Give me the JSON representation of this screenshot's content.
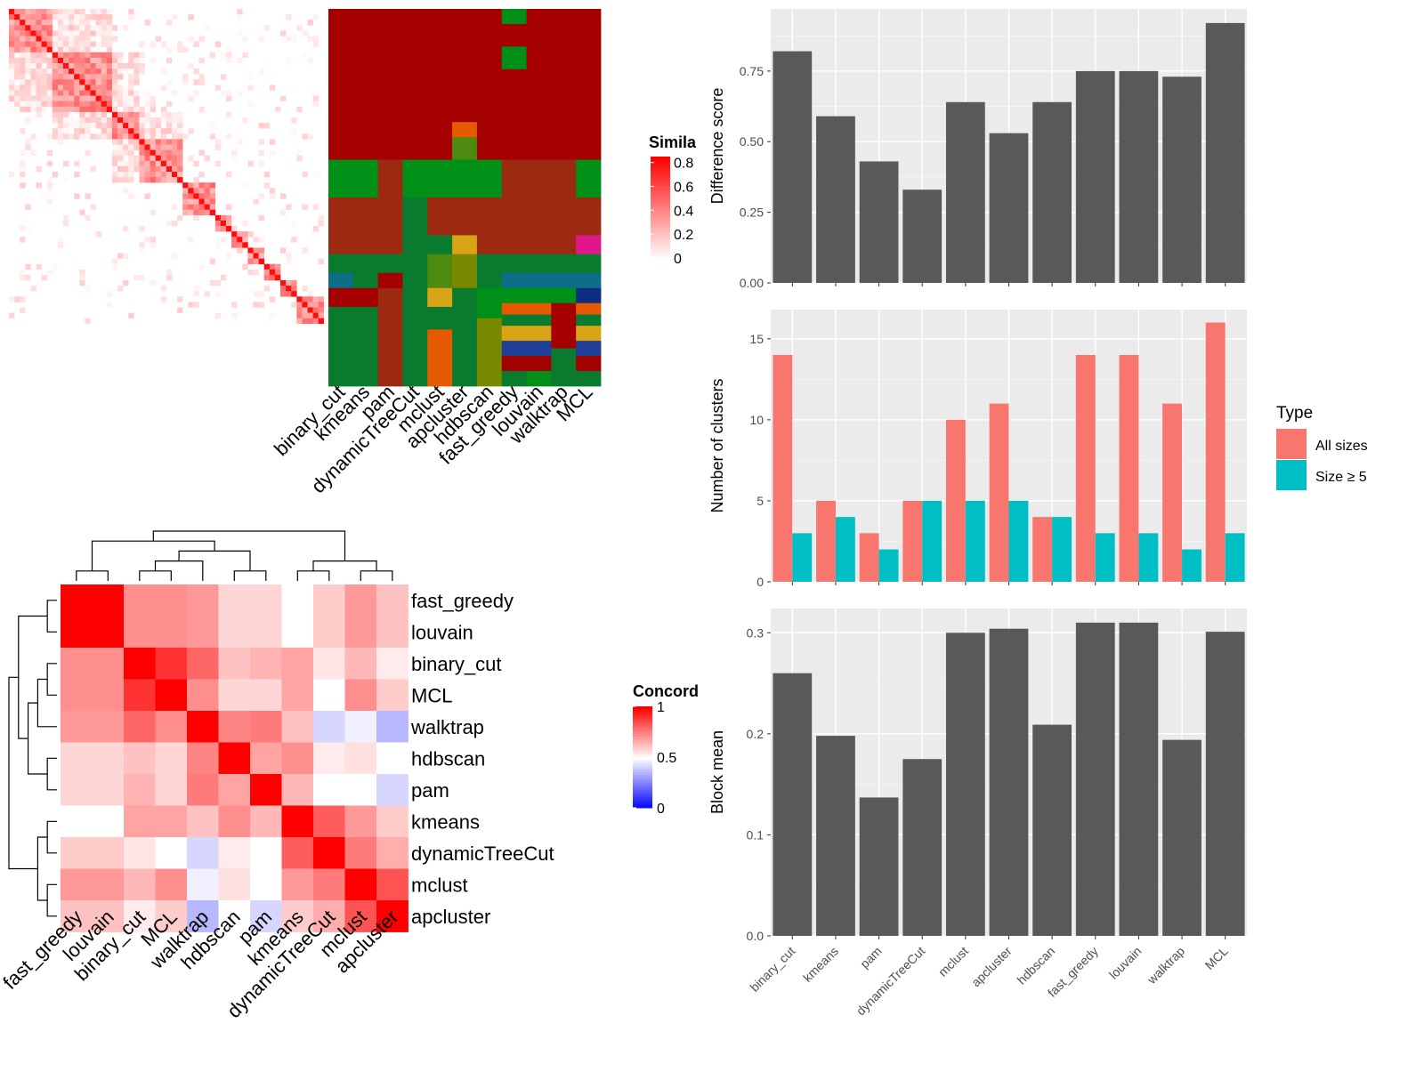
{
  "chart_data": [
    {
      "type": "heatmap",
      "name": "item-similarity-heatmap",
      "colorbar": {
        "title": "Simila",
        "ticks": [
          "0.8",
          "0.6",
          "0.4",
          "0.2",
          "0"
        ],
        "range": [
          0,
          0.85
        ]
      }
    },
    {
      "type": "heatmap",
      "name": "cluster-assignment-heatmap",
      "columns": [
        "binary_cut",
        "kmeans",
        "pam",
        "dynamicTreeCut",
        "mclust",
        "apcluster",
        "hdbscan",
        "fast_greedy",
        "louvain",
        "walktrap",
        "MCL"
      ]
    },
    {
      "type": "heatmap",
      "name": "concordance-heatmap",
      "rows": [
        "fast_greedy",
        "louvain",
        "binary_cut",
        "MCL",
        "walktrap",
        "hdbscan",
        "pam",
        "kmeans",
        "dynamicTreeCut",
        "mclust",
        "apcluster"
      ],
      "columns": [
        "fast_greedy",
        "louvain",
        "binary_cut",
        "MCL",
        "walktrap",
        "hdbscan",
        "pam",
        "kmeans",
        "dynamicTreeCut",
        "mclust",
        "apcluster"
      ],
      "values": [
        [
          1,
          1,
          0.72,
          0.72,
          0.7,
          0.58,
          0.58,
          0.5,
          0.6,
          0.7,
          0.62
        ],
        [
          1,
          1,
          0.72,
          0.72,
          0.7,
          0.58,
          0.58,
          0.5,
          0.6,
          0.7,
          0.62
        ],
        [
          0.72,
          0.72,
          1,
          0.9,
          0.8,
          0.62,
          0.65,
          0.68,
          0.55,
          0.64,
          0.54
        ],
        [
          0.72,
          0.72,
          0.9,
          1,
          0.72,
          0.58,
          0.58,
          0.68,
          0.5,
          0.72,
          0.6
        ],
        [
          0.7,
          0.7,
          0.8,
          0.72,
          1,
          0.74,
          0.76,
          0.62,
          0.42,
          0.47,
          0.36
        ],
        [
          0.58,
          0.58,
          0.62,
          0.58,
          0.74,
          1,
          0.68,
          0.72,
          0.54,
          0.56,
          0.5
        ],
        [
          0.58,
          0.58,
          0.65,
          0.58,
          0.76,
          0.68,
          1,
          0.64,
          0.5,
          0.5,
          0.42
        ],
        [
          0.5,
          0.5,
          0.68,
          0.68,
          0.62,
          0.72,
          0.64,
          1,
          0.82,
          0.7,
          0.6
        ],
        [
          0.6,
          0.6,
          0.55,
          0.5,
          0.42,
          0.54,
          0.5,
          0.82,
          1,
          0.76,
          0.66
        ],
        [
          0.7,
          0.7,
          0.64,
          0.72,
          0.47,
          0.56,
          0.5,
          0.7,
          0.76,
          1,
          0.84
        ],
        [
          0.62,
          0.62,
          0.54,
          0.6,
          0.36,
          0.5,
          0.42,
          0.6,
          0.66,
          0.84,
          1
        ]
      ],
      "colorbar": {
        "title": "Concord",
        "ticks": [
          "1",
          "0.5",
          "0"
        ],
        "range": [
          0,
          1
        ]
      }
    },
    {
      "type": "bar",
      "name": "difference-score",
      "categories": [
        "binary_cut",
        "kmeans",
        "pam",
        "dynamicTreeCut",
        "mclust",
        "apcluster",
        "hdbscan",
        "fast_greedy",
        "louvain",
        "walktrap",
        "MCL"
      ],
      "values": [
        0.82,
        0.59,
        0.43,
        0.33,
        0.64,
        0.53,
        0.64,
        0.75,
        0.75,
        0.73,
        0.92
      ],
      "ylabel": "Difference score",
      "ylim": [
        0,
        0.97
      ],
      "yticks": [
        "0.00",
        "0.25",
        "0.50",
        "0.75"
      ]
    },
    {
      "type": "bar",
      "name": "number-of-clusters",
      "categories": [
        "binary_cut",
        "kmeans",
        "pam",
        "dynamicTreeCut",
        "mclust",
        "apcluster",
        "hdbscan",
        "fast_greedy",
        "louvain",
        "walktrap",
        "MCL"
      ],
      "series": [
        {
          "name": "All sizes",
          "color": "#F8766D",
          "values": [
            14,
            5,
            3,
            5,
            10,
            11,
            4,
            14,
            14,
            11,
            16
          ]
        },
        {
          "name": "Size ≥ 5",
          "color": "#00BFC4",
          "values": [
            3,
            4,
            2,
            5,
            5,
            5,
            4,
            3,
            3,
            2,
            3
          ]
        }
      ],
      "ylabel": "Number of clusters",
      "ylim": [
        0,
        16.8
      ],
      "yticks": [
        "0",
        "5",
        "10",
        "15"
      ],
      "legend": {
        "title": "Type",
        "placement": "right"
      }
    },
    {
      "type": "bar",
      "name": "block-mean",
      "categories": [
        "binary_cut",
        "kmeans",
        "pam",
        "dynamicTreeCut",
        "mclust",
        "apcluster",
        "hdbscan",
        "fast_greedy",
        "louvain",
        "walktrap",
        "MCL"
      ],
      "values": [
        0.26,
        0.198,
        0.137,
        0.175,
        0.3,
        0.304,
        0.209,
        0.31,
        0.31,
        0.194,
        0.301
      ],
      "ylabel": "Block mean",
      "ylim": [
        0,
        0.324
      ],
      "yticks": [
        "0.0",
        "0.1",
        "0.2",
        "0.3"
      ]
    }
  ]
}
